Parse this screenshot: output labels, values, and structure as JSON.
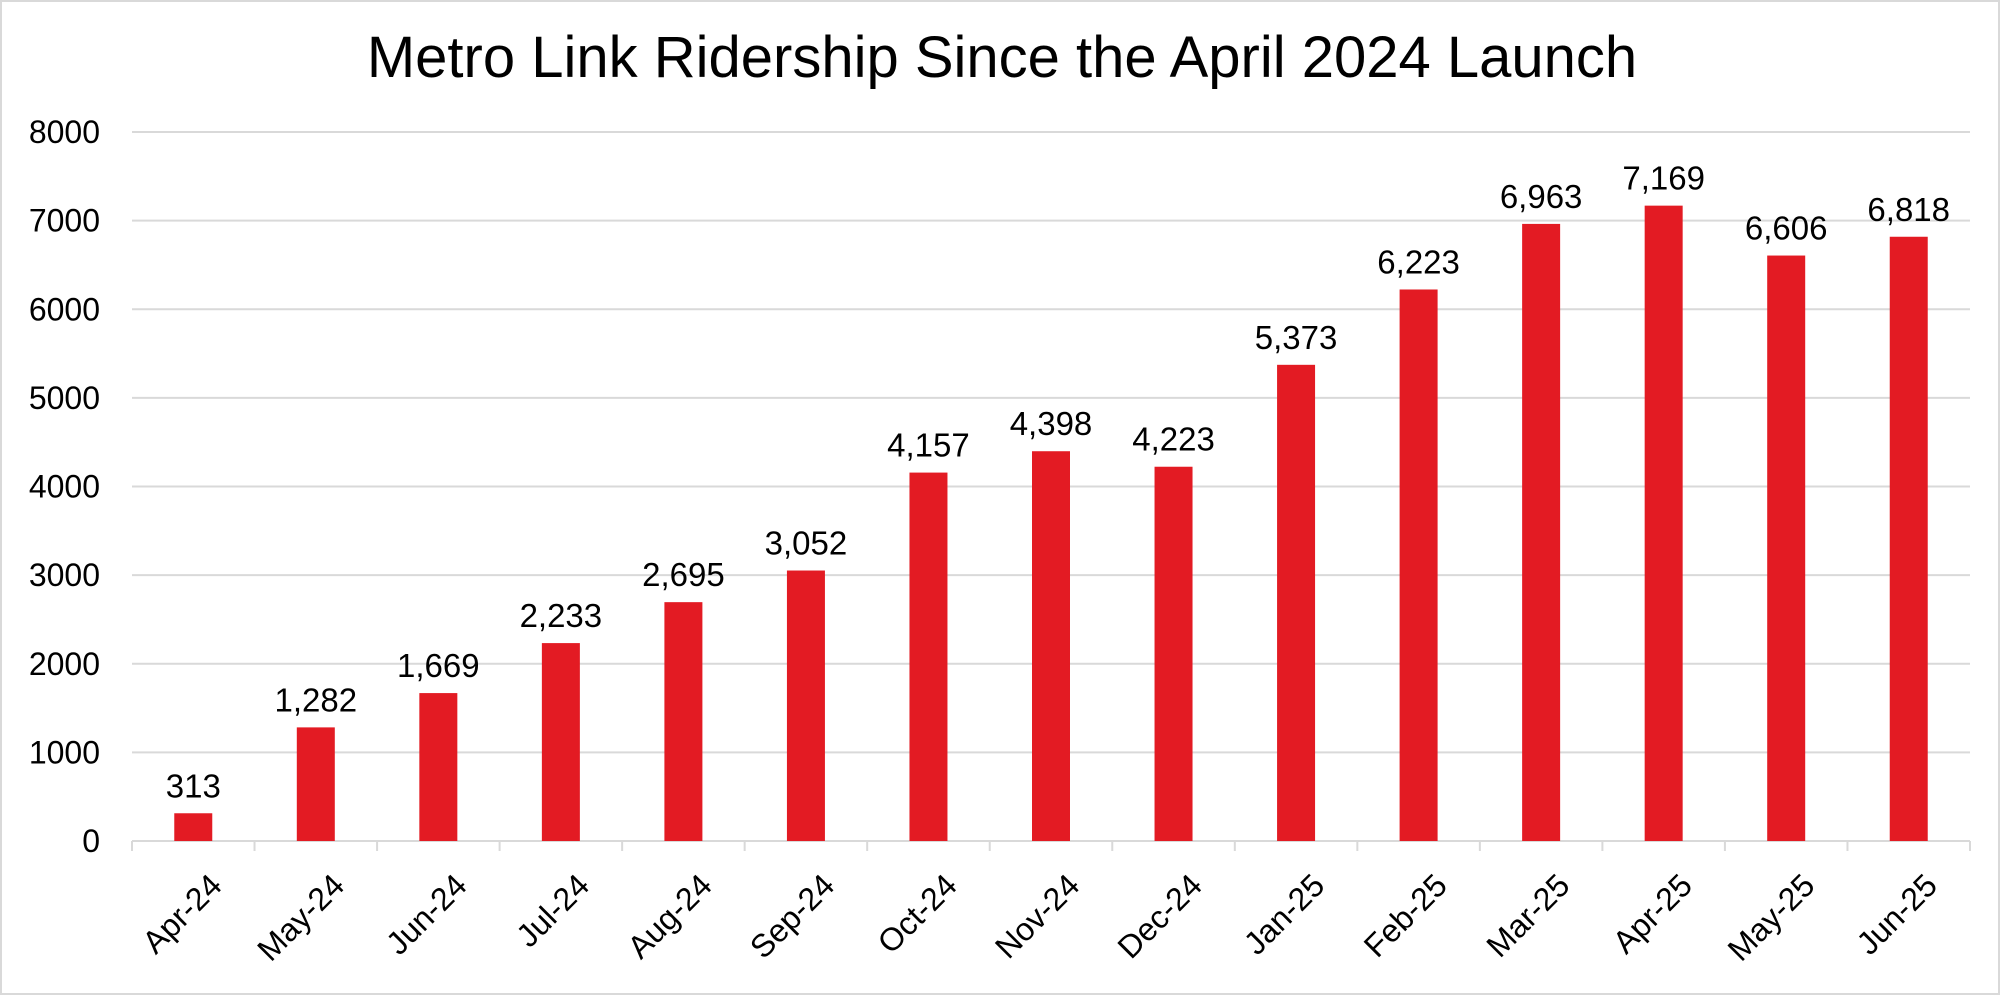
{
  "chart_data": {
    "type": "bar",
    "title": "Metro Link Ridership Since the April 2024 Launch",
    "categories": [
      "Apr-24",
      "May-24",
      "Jun-24",
      "Jul-24",
      "Aug-24",
      "Sep-24",
      "Oct-24",
      "Nov-24",
      "Dec-24",
      "Jan-25",
      "Feb-25",
      "Mar-25",
      "Apr-25",
      "May-25",
      "Jun-25"
    ],
    "values": [
      313,
      1282,
      1669,
      2233,
      2695,
      3052,
      4157,
      4398,
      4223,
      5373,
      6223,
      6963,
      7169,
      6606,
      6818
    ],
    "data_labels": [
      "313",
      "1,282",
      "1,669",
      "2,233",
      "2,695",
      "3,052",
      "4,157",
      "4,398",
      "4,223",
      "5,373",
      "6,223",
      "6,963",
      "7,169",
      "6,606",
      "6,818"
    ],
    "y_ticks": [
      "0",
      "1000",
      "2000",
      "3000",
      "4000",
      "5000",
      "6000",
      "7000",
      "8000"
    ],
    "ylim": [
      0,
      8000
    ],
    "xlabel": "",
    "ylabel": "",
    "grid": true,
    "legend": "none",
    "bar_color": "#e31b23",
    "grid_color": "#d9d9d9"
  }
}
